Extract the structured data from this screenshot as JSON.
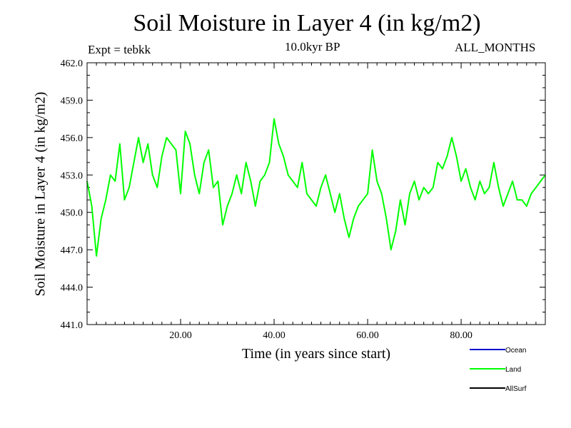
{
  "chart_data": {
    "type": "line",
    "title": "Soil Moisture in Layer 4 (in kg/m2)",
    "subtitle_left": "Expt = tebkk",
    "subtitle_center": "10.0kyr BP",
    "subtitle_right": "ALL_MONTHS",
    "xlabel": "Time (in years since start)",
    "ylabel": "Soil Moisture in Layer 4 (in kg/m2)",
    "xlim": [
      0,
      98
    ],
    "ylim": [
      441.0,
      462.0
    ],
    "xticks": [
      20,
      40,
      60,
      80
    ],
    "xtick_labels": [
      "20.00",
      "40.00",
      "60.00",
      "80.00"
    ],
    "yticks": [
      441,
      444,
      447,
      450,
      453,
      456,
      459,
      462
    ],
    "ytick_labels": [
      "441.0",
      "444.0",
      "447.0",
      "450.0",
      "453.0",
      "456.0",
      "459.0",
      "462.0"
    ],
    "grid": false,
    "legend_position": "bottom-right",
    "series": [
      {
        "name": "Ocean",
        "color": "#0000cc",
        "x": [],
        "values": []
      },
      {
        "name": "Land",
        "color": "#00ff00",
        "x": [
          0,
          1,
          2,
          3,
          4,
          5,
          6,
          7,
          8,
          9,
          10,
          11,
          12,
          13,
          14,
          15,
          16,
          17,
          18,
          19,
          20,
          21,
          22,
          23,
          24,
          25,
          26,
          27,
          28,
          29,
          30,
          31,
          32,
          33,
          34,
          35,
          36,
          37,
          38,
          39,
          40,
          41,
          42,
          43,
          44,
          45,
          46,
          47,
          48,
          49,
          50,
          51,
          52,
          53,
          54,
          55,
          56,
          57,
          58,
          59,
          60,
          61,
          62,
          63,
          64,
          65,
          66,
          67,
          68,
          69,
          70,
          71,
          72,
          73,
          74,
          75,
          76,
          77,
          78,
          79,
          80,
          81,
          82,
          83,
          84,
          85,
          86,
          87,
          88,
          89,
          90,
          91,
          92,
          93,
          94,
          95,
          96,
          97,
          98
        ],
        "values": [
          452.5,
          450.5,
          446.5,
          449.5,
          451.0,
          453.0,
          452.5,
          455.5,
          451.0,
          452.0,
          454.0,
          456.0,
          454.0,
          455.5,
          453.0,
          452.0,
          454.5,
          456.0,
          455.5,
          455.0,
          451.5,
          456.5,
          455.5,
          453.0,
          451.5,
          454.0,
          455.0,
          452.0,
          452.5,
          449.0,
          450.5,
          451.5,
          453.0,
          451.5,
          454.0,
          452.5,
          450.5,
          452.5,
          453.0,
          454.0,
          457.5,
          455.5,
          454.5,
          453.0,
          452.5,
          452.0,
          454.0,
          451.5,
          451.0,
          450.5,
          452.0,
          453.0,
          451.5,
          450.0,
          451.5,
          449.5,
          448.0,
          449.5,
          450.5,
          451.0,
          451.5,
          455.0,
          452.5,
          451.5,
          449.5,
          447.0,
          448.5,
          451.0,
          449.0,
          451.5,
          452.5,
          451.0,
          452.0,
          451.5,
          452.0,
          454.0,
          453.5,
          454.5,
          456.0,
          454.5,
          452.5,
          453.5,
          452.0,
          451.0,
          452.5,
          451.5,
          452.0,
          454.0,
          452.0,
          450.5,
          451.5,
          452.5,
          451.0,
          451.0,
          450.5,
          451.5,
          452.0,
          452.5,
          453.0
        ]
      },
      {
        "name": "AllSurf",
        "color": "#000000",
        "x": [],
        "values": []
      }
    ]
  }
}
